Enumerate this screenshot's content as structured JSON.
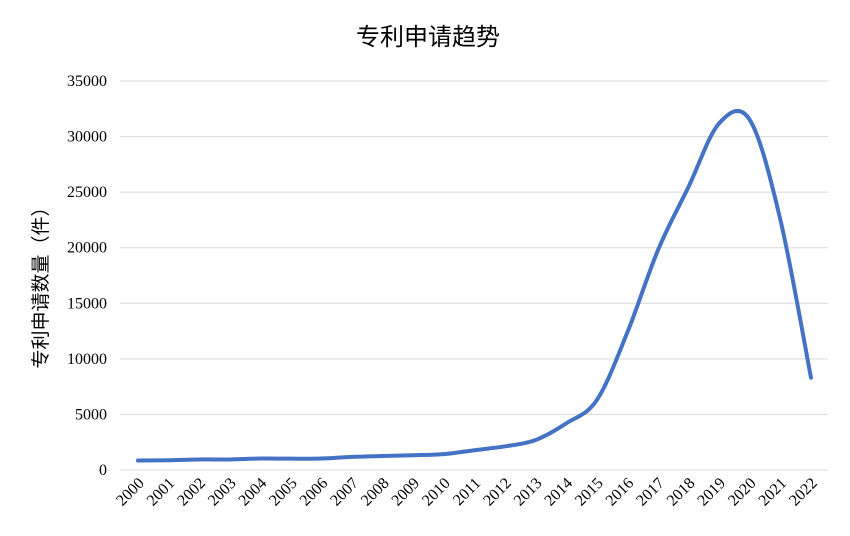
{
  "chart_data": {
    "type": "line",
    "title": "专利申请趋势",
    "xlabel": "",
    "ylabel": "专利申请数量（件）",
    "ylim": [
      0,
      35000
    ],
    "yticks": [
      "0",
      "5000",
      "10000",
      "15000",
      "20000",
      "25000",
      "30000",
      "35000"
    ],
    "categories": [
      "2000",
      "2001",
      "2002",
      "2003",
      "2004",
      "2005",
      "2006",
      "2007",
      "2008",
      "2009",
      "2010",
      "2011",
      "2012",
      "2013",
      "2014",
      "2015",
      "2016",
      "2017",
      "2018",
      "2019",
      "2020",
      "2021",
      "2022"
    ],
    "series": [
      {
        "name": "",
        "color": "#4472c4",
        "values": [
          850,
          880,
          950,
          950,
          1030,
          1020,
          1030,
          1180,
          1260,
          1330,
          1430,
          1780,
          2130,
          2700,
          4200,
          6300,
          12400,
          19800,
          25500,
          31200,
          31500,
          22500,
          8300
        ]
      }
    ],
    "grid": true,
    "legend": "none"
  }
}
